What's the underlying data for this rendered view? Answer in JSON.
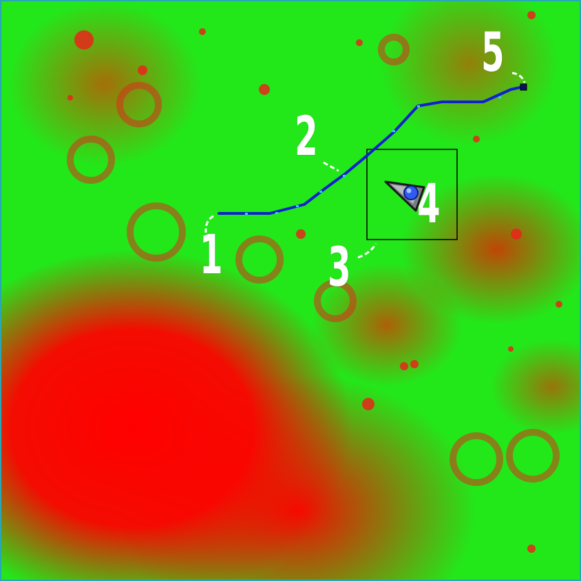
{
  "map": {
    "colors": {
      "low": "#ff0000",
      "high": "#22e81a",
      "route": "#1020d0",
      "route_dots": "#39c8ff",
      "border": "#2aa7b6",
      "labels": "#ffffff",
      "frame": "#000000"
    },
    "markers": [
      {
        "label": "1"
      },
      {
        "label": "2"
      },
      {
        "label": "3"
      },
      {
        "label": "4"
      },
      {
        "label": "5"
      }
    ],
    "icons": {
      "rover": "rover-icon",
      "goal": "goal-square-icon"
    }
  }
}
